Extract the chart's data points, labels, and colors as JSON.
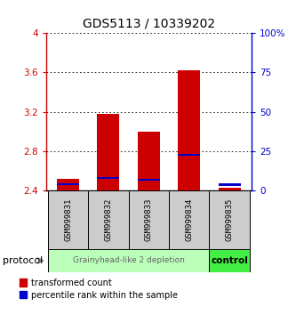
{
  "title": "GDS5113 / 10339202",
  "samples": [
    "GSM999831",
    "GSM999832",
    "GSM999833",
    "GSM999834",
    "GSM999835"
  ],
  "bar_bottom": 2.4,
  "red_tops": [
    2.52,
    3.18,
    3.0,
    3.62,
    2.43
  ],
  "blue_values": [
    2.465,
    2.527,
    2.508,
    2.765,
    2.462
  ],
  "ylim_left": [
    2.4,
    4.0
  ],
  "ylim_right": [
    0,
    100
  ],
  "yticks_left": [
    2.4,
    2.8,
    3.2,
    3.6,
    4.0
  ],
  "ytick_labels_left": [
    "2.4",
    "2.8",
    "3.2",
    "3.6",
    "4"
  ],
  "yticks_right": [
    0,
    25,
    50,
    75,
    100
  ],
  "ytick_labels_right": [
    "0",
    "25",
    "50",
    "75",
    "100%"
  ],
  "red_color": "#cc0000",
  "blue_color": "#0000cc",
  "bar_width": 0.55,
  "group1_label": "Grainyhead-like 2 depletion",
  "group2_label": "control",
  "group1_color": "#bbffbb",
  "group2_color": "#44ee44",
  "sample_box_color": "#cccccc",
  "protocol_label": "protocol",
  "legend_red": "transformed count",
  "legend_blue": "percentile rank within the sample",
  "title_fontsize": 10,
  "tick_fontsize": 7.5,
  "sample_fontsize": 6.5
}
